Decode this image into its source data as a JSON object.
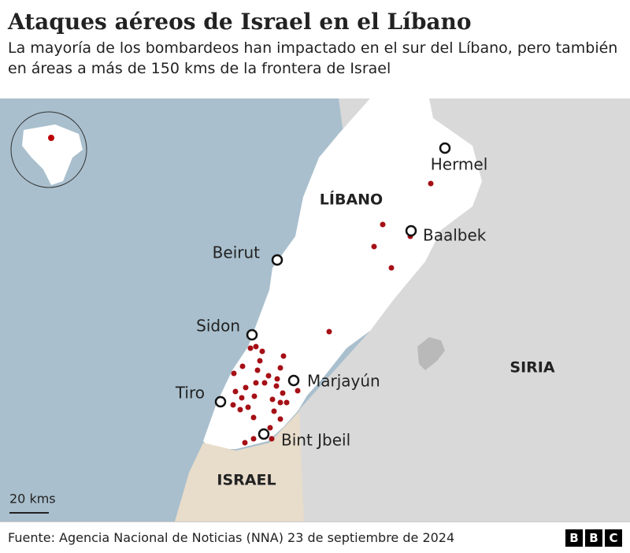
{
  "header": {
    "title": "Ataques aéreos de Israel en el Líbano",
    "subtitle": "La mayoría de los bombardeos han impactado en el sur del Líbano, pero también en áreas a más de 150 kms de la frontera de Israel"
  },
  "map": {
    "cities": [
      "Hermel",
      "Baalbek",
      "Beirut",
      "Sidon",
      "Marjayún",
      "Tiro",
      "Bint Jbeil"
    ],
    "countries": [
      "LÍBANO",
      "SIRIA",
      "ISRAEL"
    ],
    "scale": "20 kms"
  },
  "footer": {
    "source": "Fuente: Agencia Nacional de Noticias (NNA) 23 de septiembre de 2024",
    "logo": [
      "B",
      "B",
      "C"
    ]
  }
}
